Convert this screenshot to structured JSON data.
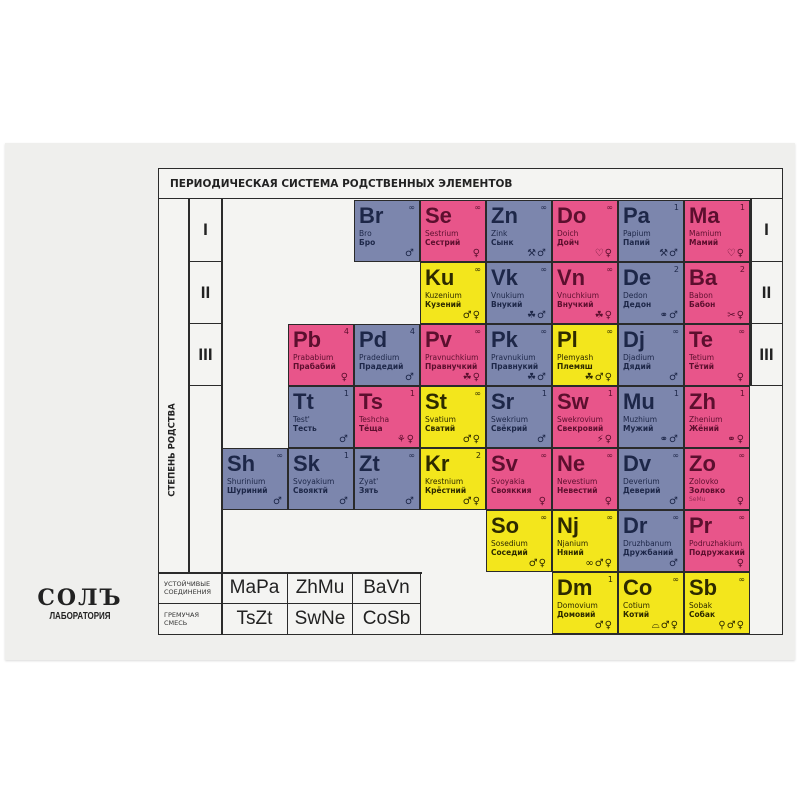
{
  "title": "ПЕРИОДИЧЕСКАЯ СИСТЕМА РОДСТВЕННЫХ ЭЛЕМЕНТОВ",
  "axis_label": "СТЕПЕНЬ РОДСТВА",
  "left_romans": [
    "I",
    "II",
    "III"
  ],
  "right_romans": [
    "I",
    "II",
    "III"
  ],
  "colors": {
    "gray": "#7c86ad",
    "pink": "#e8558a",
    "yellow": "#f3e61c",
    "gray_text": "#1d2748",
    "pink_text": "#5c0f2e",
    "yellow_text": "#2d2a00"
  },
  "icon_glyphs": {
    "male": "♂",
    "female": "♀",
    "tools": "⚒",
    "hearts": "♡",
    "children": "☘",
    "rings": "⚭",
    "lightning": "⚡",
    "broom": "⚘",
    "cat": "⌓",
    "bone": "⚲",
    "pacifier": "∞",
    "scissors": "✂"
  },
  "rows": [
    [
      null,
      null,
      {
        "sym": "Br",
        "lat": "Bro",
        "rus": "Бро",
        "cnt": "∞",
        "color": "gray",
        "icons": [
          "male"
        ]
      },
      {
        "sym": "Se",
        "lat": "Sestrium",
        "rus": "Сестрий",
        "cnt": "∞",
        "color": "pink",
        "icons": [
          "female"
        ]
      },
      {
        "sym": "Zn",
        "lat": "Zink",
        "rus": "Сынк",
        "cnt": "∞",
        "color": "gray",
        "icons": [
          "tools",
          "male"
        ]
      },
      {
        "sym": "Do",
        "lat": "Doich",
        "rus": "Дойч",
        "cnt": "∞",
        "color": "pink",
        "icons": [
          "hearts",
          "female"
        ]
      },
      {
        "sym": "Pa",
        "lat": "Papium",
        "rus": "Папий",
        "cnt": "1",
        "color": "gray",
        "icons": [
          "tools",
          "male"
        ]
      },
      {
        "sym": "Ma",
        "lat": "Mamium",
        "rus": "Мамий",
        "cnt": "1",
        "color": "pink",
        "icons": [
          "hearts",
          "female"
        ]
      }
    ],
    [
      null,
      null,
      null,
      {
        "sym": "Ku",
        "lat": "Kuzenium",
        "rus": "Кузений",
        "cnt": "∞",
        "color": "yellow",
        "icons": [
          "male",
          "female"
        ]
      },
      {
        "sym": "Vk",
        "lat": "Vnukium",
        "rus": "Внукий",
        "cnt": "∞",
        "color": "gray",
        "icons": [
          "children",
          "male"
        ]
      },
      {
        "sym": "Vn",
        "lat": "Vnuchkium",
        "rus": "Внучкий",
        "cnt": "∞",
        "color": "pink",
        "icons": [
          "children",
          "female"
        ]
      },
      {
        "sym": "De",
        "lat": "Dedon",
        "rus": "Дедон",
        "cnt": "2",
        "color": "gray",
        "icons": [
          "rings",
          "male"
        ]
      },
      {
        "sym": "Ba",
        "lat": "Babon",
        "rus": "Бабон",
        "cnt": "2",
        "color": "pink",
        "icons": [
          "scissors",
          "female"
        ]
      }
    ],
    [
      null,
      {
        "sym": "Pb",
        "lat": "Prababium",
        "rus": "Прабабий",
        "cnt": "4",
        "color": "pink",
        "icons": [
          "female"
        ]
      },
      {
        "sym": "Pd",
        "lat": "Pradedium",
        "rus": "Прадедий",
        "cnt": "4",
        "color": "gray",
        "icons": [
          "male"
        ]
      },
      {
        "sym": "Pv",
        "lat": "Pravnuchkium",
        "rus": "Правнучкий",
        "cnt": "∞",
        "color": "pink",
        "icons": [
          "children",
          "female"
        ]
      },
      {
        "sym": "Pk",
        "lat": "Pravnukium",
        "rus": "Правнукий",
        "cnt": "∞",
        "color": "gray",
        "icons": [
          "children",
          "male"
        ]
      },
      {
        "sym": "Pl",
        "lat": "Plemyash",
        "rus": "Племяш",
        "cnt": "∞",
        "color": "yellow",
        "icons": [
          "children",
          "male",
          "female"
        ]
      },
      {
        "sym": "Dj",
        "lat": "Djadium",
        "rus": "Дядий",
        "cnt": "∞",
        "color": "gray",
        "icons": [
          "male"
        ]
      },
      {
        "sym": "Te",
        "lat": "Tetium",
        "rus": "Тётий",
        "cnt": "∞",
        "color": "pink",
        "icons": [
          "female"
        ]
      }
    ],
    [
      null,
      {
        "sym": "Tt",
        "lat": "Test'",
        "rus": "Тесть",
        "cnt": "1",
        "color": "gray",
        "icons": [
          "male"
        ]
      },
      {
        "sym": "Ts",
        "lat": "Teshcha",
        "rus": "Тёща",
        "cnt": "1",
        "color": "pink",
        "icons": [
          "broom",
          "female"
        ]
      },
      {
        "sym": "St",
        "lat": "Svatium",
        "rus": "Сватий",
        "cnt": "∞",
        "color": "yellow",
        "icons": [
          "male",
          "female"
        ]
      },
      {
        "sym": "Sr",
        "lat": "Swekrium",
        "rus": "Свёкрий",
        "cnt": "1",
        "color": "gray",
        "icons": [
          "male"
        ]
      },
      {
        "sym": "Sw",
        "lat": "Swekrovium",
        "rus": "Свекровий",
        "cnt": "1",
        "color": "pink",
        "icons": [
          "lightning",
          "female"
        ]
      },
      {
        "sym": "Mu",
        "lat": "Muzhium",
        "rus": "Мужий",
        "cnt": "1",
        "color": "gray",
        "icons": [
          "rings",
          "male"
        ]
      },
      {
        "sym": "Zh",
        "lat": "Zhenium",
        "rus": "Жёний",
        "cnt": "1",
        "color": "pink",
        "icons": [
          "rings",
          "female"
        ]
      }
    ],
    [
      {
        "sym": "Sh",
        "lat": "Shurinium",
        "rus": "Шуриний",
        "cnt": "∞",
        "color": "gray",
        "icons": [
          "male"
        ]
      },
      {
        "sym": "Sk",
        "lat": "Svoyakium",
        "rus": "Свояктй",
        "cnt": "1",
        "color": "gray",
        "icons": [
          "male"
        ]
      },
      {
        "sym": "Zt",
        "lat": "Zyat'",
        "rus": "Зять",
        "cnt": "∞",
        "color": "gray",
        "icons": [
          "male"
        ]
      },
      {
        "sym": "Kr",
        "lat": "Krestnium",
        "rus": "Крёстний",
        "cnt": "2",
        "color": "yellow",
        "icons": [
          "male",
          "female"
        ]
      },
      {
        "sym": "Sv",
        "lat": "Svoyakia",
        "rus": "Свояккия",
        "cnt": "∞",
        "color": "pink",
        "icons": [
          "female"
        ]
      },
      {
        "sym": "Ne",
        "lat": "Nevestium",
        "rus": "Невестий",
        "cnt": "∞",
        "color": "pink",
        "icons": [
          "female"
        ]
      },
      {
        "sym": "Dv",
        "lat": "Deverium",
        "rus": "Деверий",
        "cnt": "∞",
        "color": "gray",
        "icons": [
          "male"
        ]
      },
      {
        "sym": "Zo",
        "lat": "Zolovko",
        "rus": "Золовко",
        "note": "SeMu",
        "cnt": "∞",
        "color": "pink",
        "icons": [
          "female"
        ]
      }
    ],
    [
      null,
      null,
      null,
      null,
      {
        "sym": "So",
        "lat": "Sosedium",
        "rus": "Соседий",
        "cnt": "∞",
        "color": "yellow",
        "icons": [
          "male",
          "female"
        ]
      },
      {
        "sym": "Nj",
        "lat": "Njanium",
        "rus": "Няний",
        "cnt": "∞",
        "color": "yellow",
        "icons": [
          "pacifier",
          "male",
          "female"
        ]
      },
      {
        "sym": "Dr",
        "lat": "Druzhbanum",
        "rus": "Дружбаний",
        "cnt": "∞",
        "color": "gray",
        "icons": [
          "male"
        ]
      },
      {
        "sym": "Pr",
        "lat": "Podruzhakium",
        "rus": "Подружакий",
        "cnt": "∞",
        "color": "pink",
        "icons": [
          "female"
        ]
      }
    ],
    [
      null,
      null,
      null,
      null,
      null,
      {
        "sym": "Dm",
        "lat": "Domovium",
        "rus": "Домовий",
        "cnt": "1",
        "color": "yellow",
        "icons": [
          "male",
          "female"
        ]
      },
      {
        "sym": "Co",
        "lat": "Cotium",
        "rus": "Котий",
        "cnt": "∞",
        "color": "yellow",
        "icons": [
          "cat",
          "male",
          "female"
        ]
      },
      {
        "sym": "Sb",
        "lat": "Sobak",
        "rus": "Собак",
        "cnt": "∞",
        "color": "yellow",
        "icons": [
          "bone",
          "male",
          "female"
        ]
      }
    ]
  ],
  "compounds": {
    "stable_label": "УСТОЙЧИВЫЕ СОЕДИНЕНИЯ",
    "stable": [
      "MaPa",
      "ZhMu",
      "BaVn"
    ],
    "explosive_label": "ГРЕМУЧАЯ СМЕСЬ",
    "explosive": [
      "TsZt",
      "SwNe",
      "CoSb"
    ]
  },
  "logo": {
    "name": "СОЛЪ",
    "sub": "ЛАБОРАТОРИЯ"
  }
}
